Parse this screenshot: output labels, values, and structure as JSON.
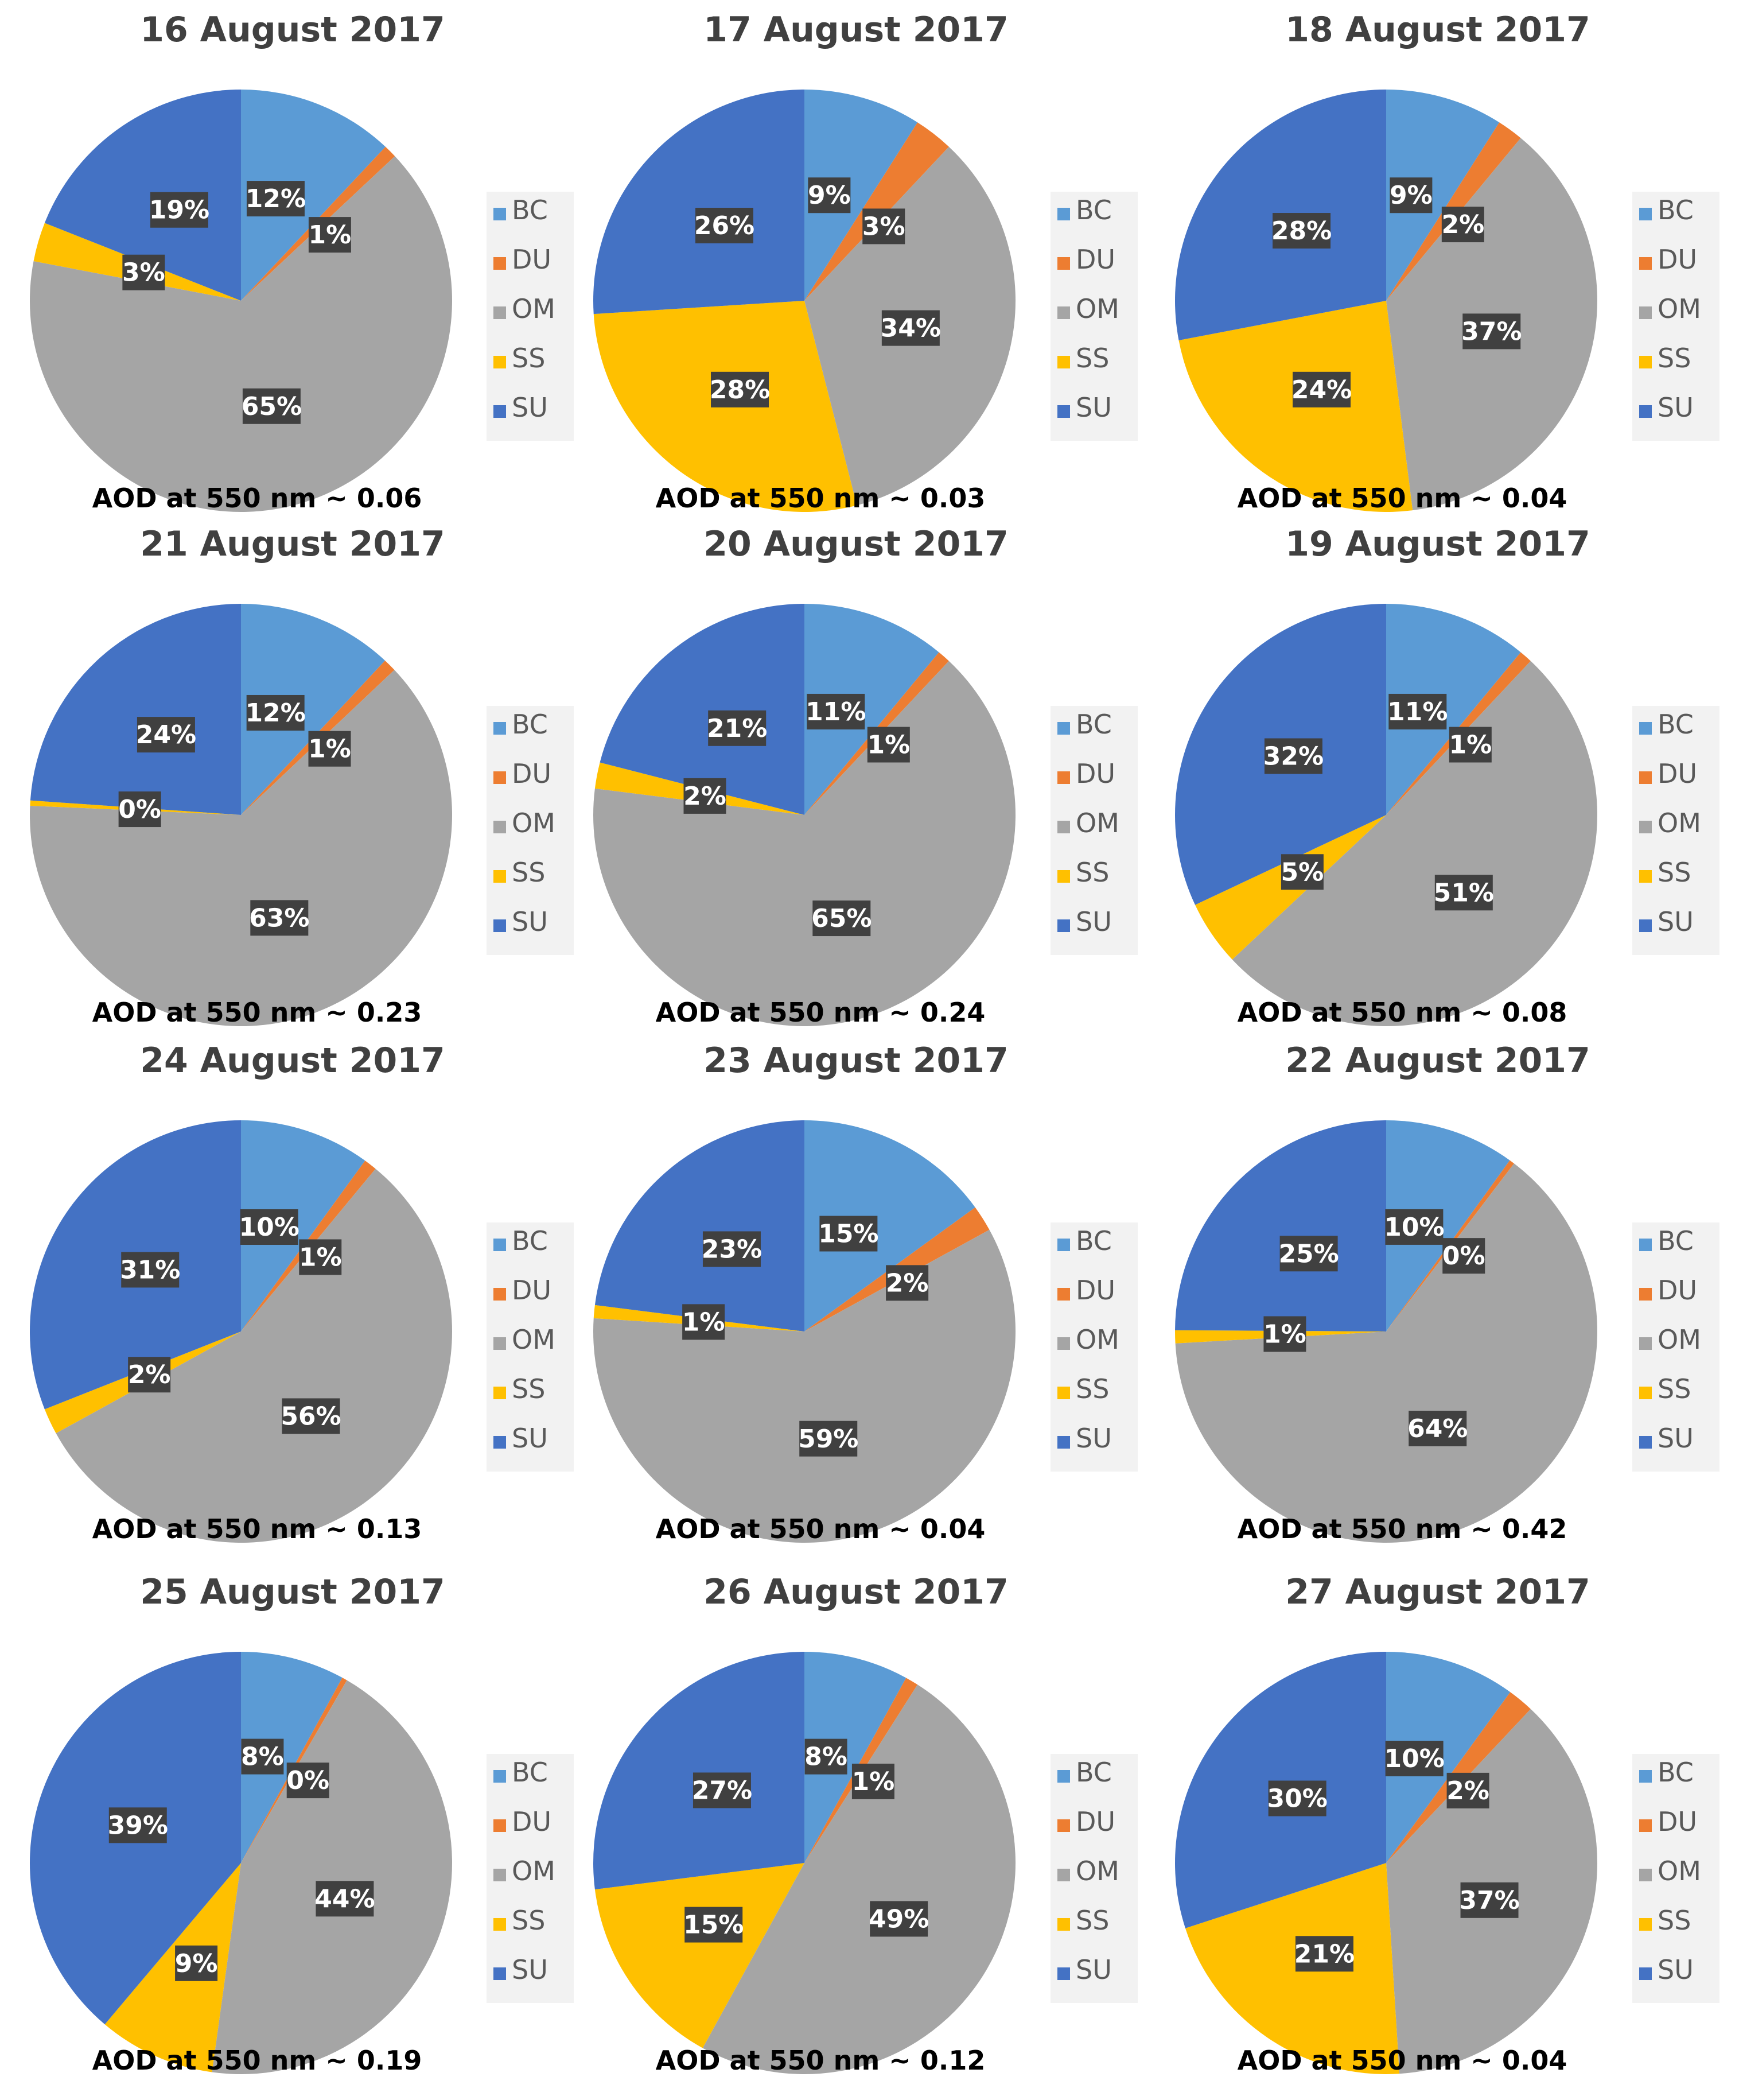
{
  "chart_data": [
    {
      "type": "pie",
      "title": "16 August 2017",
      "categories": [
        "BC",
        "DU",
        "OM",
        "SS",
        "SU"
      ],
      "values": [
        12,
        1,
        65,
        3,
        19
      ],
      "data_labels": [
        "12%",
        "1%",
        "65%",
        "3%",
        "19%"
      ],
      "annotation": "AOD at 550 nm ~ 0.06",
      "legend": [
        "BC",
        "DU",
        "OM",
        "SS",
        "SU"
      ]
    },
    {
      "type": "pie",
      "title": "17 August 2017",
      "categories": [
        "BC",
        "DU",
        "OM",
        "SS",
        "SU"
      ],
      "values": [
        9,
        3,
        34,
        28,
        26
      ],
      "data_labels": [
        "9%",
        "3%",
        "34%",
        "28%",
        "26%"
      ],
      "annotation": "AOD at 550 nm ~ 0.03",
      "legend": [
        "BC",
        "DU",
        "OM",
        "SS",
        "SU"
      ]
    },
    {
      "type": "pie",
      "title": "18 August 2017",
      "categories": [
        "BC",
        "DU",
        "OM",
        "SS",
        "SU"
      ],
      "values": [
        9,
        2,
        37,
        24,
        28
      ],
      "data_labels": [
        "9%",
        "2%",
        "37%",
        "24%",
        "28%"
      ],
      "annotation": "AOD at 550 nm ~ 0.04",
      "legend": [
        "BC",
        "DU",
        "OM",
        "SS",
        "SU"
      ]
    },
    {
      "type": "pie",
      "title": "21 August 2017",
      "categories": [
        "BC",
        "DU",
        "OM",
        "SS",
        "SU"
      ],
      "values": [
        12,
        1,
        63,
        0.4,
        24
      ],
      "data_labels": [
        "12%",
        "1%",
        "63%",
        "0%",
        "24%"
      ],
      "annotation": "AOD at 550 nm ~ 0.23",
      "legend": [
        "BC",
        "DU",
        "OM",
        "SS",
        "SU"
      ]
    },
    {
      "type": "pie",
      "title": "20 August 2017",
      "categories": [
        "BC",
        "DU",
        "OM",
        "SS",
        "SU"
      ],
      "values": [
        11,
        1,
        65,
        2,
        21
      ],
      "data_labels": [
        "11%",
        "1%",
        "65%",
        "2%",
        "21%"
      ],
      "annotation": "AOD at 550 nm ~ 0.24",
      "legend": [
        "BC",
        "DU",
        "OM",
        "SS",
        "SU"
      ]
    },
    {
      "type": "pie",
      "title": "19 August 2017",
      "categories": [
        "BC",
        "DU",
        "OM",
        "SS",
        "SU"
      ],
      "values": [
        11,
        1,
        51,
        5,
        32
      ],
      "data_labels": [
        "11%",
        "1%",
        "51%",
        "5%",
        "32%"
      ],
      "annotation": "AOD at 550 nm ~ 0.08",
      "legend": [
        "BC",
        "DU",
        "OM",
        "SS",
        "SU"
      ]
    },
    {
      "type": "pie",
      "title": "24 August 2017",
      "categories": [
        "BC",
        "DU",
        "OM",
        "SS",
        "SU"
      ],
      "values": [
        10,
        1,
        56,
        2,
        31
      ],
      "data_labels": [
        "10%",
        "1%",
        "56%",
        "2%",
        "31%"
      ],
      "annotation": "AOD at 550 nm ~ 0.13",
      "legend": [
        "BC",
        "DU",
        "OM",
        "SS",
        "SU"
      ]
    },
    {
      "type": "pie",
      "title": "23 August 2017",
      "categories": [
        "BC",
        "DU",
        "OM",
        "SS",
        "SU"
      ],
      "values": [
        15,
        2,
        59,
        1,
        23
      ],
      "data_labels": [
        "15%",
        "2%",
        "59%",
        "1%",
        "23%"
      ],
      "annotation": "AOD at 550 nm ~ 0.04",
      "legend": [
        "BC",
        "DU",
        "OM",
        "SS",
        "SU"
      ]
    },
    {
      "type": "pie",
      "title": "22 August 2017",
      "categories": [
        "BC",
        "DU",
        "OM",
        "SS",
        "SU"
      ],
      "values": [
        10,
        0.4,
        64,
        1,
        25
      ],
      "data_labels": [
        "10%",
        "0%",
        "64%",
        "1%",
        "25%"
      ],
      "annotation": "AOD at 550 nm ~ 0.42",
      "legend": [
        "BC",
        "DU",
        "OM",
        "SS",
        "SU"
      ]
    },
    {
      "type": "pie",
      "title": "25 August 2017",
      "categories": [
        "BC",
        "DU",
        "OM",
        "SS",
        "SU"
      ],
      "values": [
        8,
        0.4,
        44,
        9,
        39
      ],
      "data_labels": [
        "8%",
        "0%",
        "44%",
        "9%",
        "39%"
      ],
      "annotation": "AOD at 550 nm ~ 0.19",
      "legend": [
        "BC",
        "DU",
        "OM",
        "SS",
        "SU"
      ]
    },
    {
      "type": "pie",
      "title": "26 August 2017",
      "categories": [
        "BC",
        "DU",
        "OM",
        "SS",
        "SU"
      ],
      "values": [
        8,
        1,
        49,
        15,
        27
      ],
      "data_labels": [
        "8%",
        "1%",
        "49%",
        "15%",
        "27%"
      ],
      "annotation": "AOD at 550 nm ~ 0.12",
      "legend": [
        "BC",
        "DU",
        "OM",
        "SS",
        "SU"
      ]
    },
    {
      "type": "pie",
      "title": "27 August 2017",
      "categories": [
        "BC",
        "DU",
        "OM",
        "SS",
        "SU"
      ],
      "values": [
        10,
        2,
        37,
        21,
        30
      ],
      "data_labels": [
        "10%",
        "2%",
        "37%",
        "21%",
        "30%"
      ],
      "annotation": "AOD at 550 nm ~ 0.04",
      "legend": [
        "BC",
        "DU",
        "OM",
        "SS",
        "SU"
      ]
    }
  ],
  "colors": {
    "BC": "#5b9bd5",
    "DU": "#ed7d31",
    "OM": "#a5a5a5",
    "SS": "#ffc000",
    "SU": "#4472c4",
    "label_bg": "#404040",
    "legend_bg": "#f2f2f2"
  }
}
